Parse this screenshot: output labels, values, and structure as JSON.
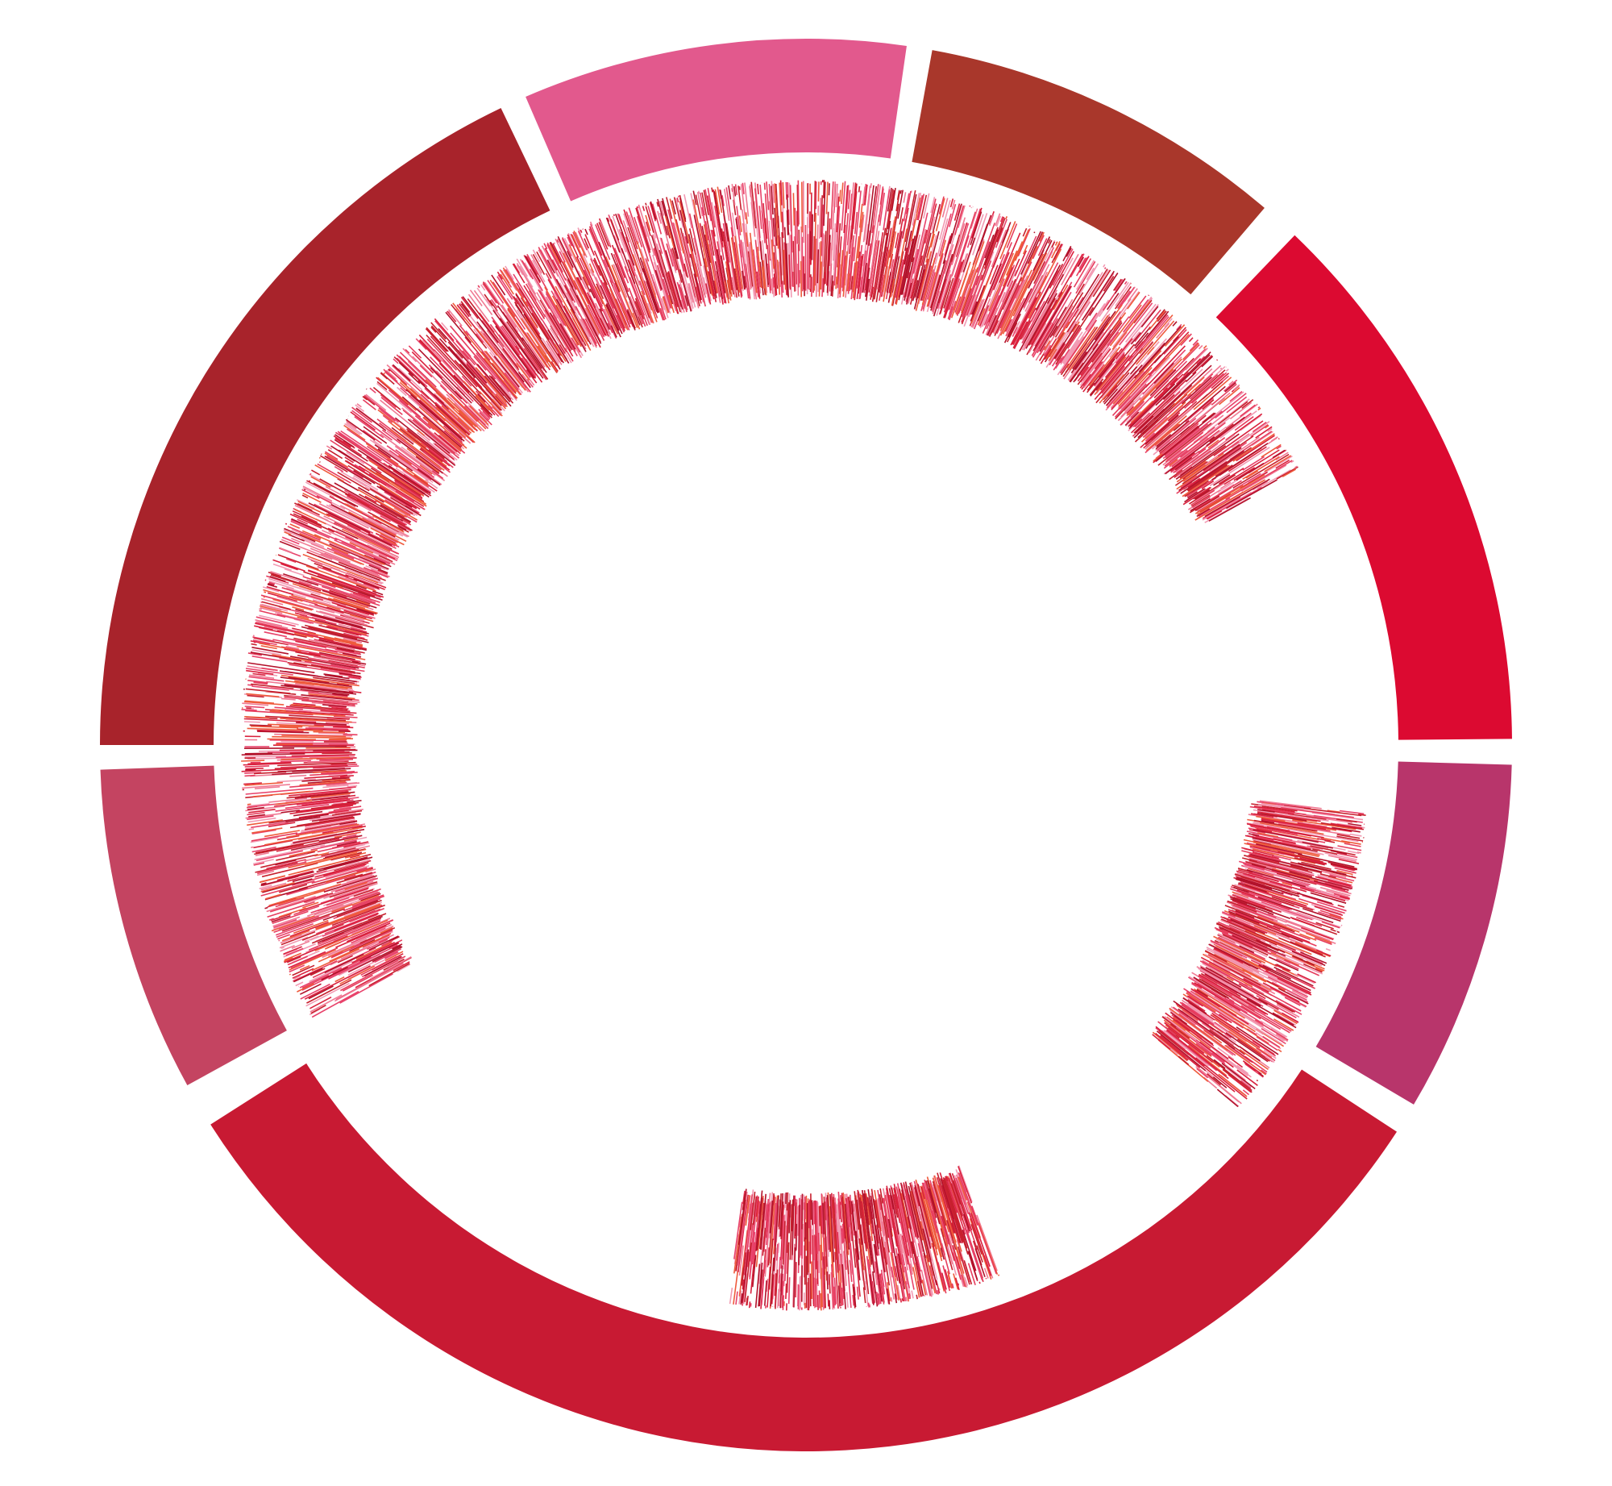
{
  "diagram": {
    "type": "circular-genome-plot",
    "background": "#ffffff",
    "palette": [
      "#a8232b",
      "#e2598d",
      "#a9372b",
      "#dc0a31",
      "#b8356b",
      "#c81a33",
      "#c44461"
    ],
    "stripe_palette": [
      "#d9213d",
      "#e8436b",
      "#f07a94",
      "#c7202e",
      "#ef5a3c",
      "#b3122b",
      "#f29ab3",
      "#e63d5e"
    ],
    "segments": [
      {
        "name": "segment-1",
        "start_deg": 270.0,
        "end_deg": 334.4,
        "color": "#a8232b"
      },
      {
        "name": "segment-2",
        "start_deg": 336.6,
        "end_deg": 8.2,
        "color": "#e2598d"
      },
      {
        "name": "segment-3",
        "start_deg": 10.3,
        "end_deg": 40.5,
        "color": "#a9372b"
      },
      {
        "name": "segment-4",
        "start_deg": 43.8,
        "end_deg": 89.5,
        "color": "#dc0a31"
      },
      {
        "name": "segment-5",
        "start_deg": 91.6,
        "end_deg": 120.6,
        "color": "#b8356b"
      },
      {
        "name": "segment-6",
        "start_deg": 123.2,
        "end_deg": 237.5,
        "color": "#c81a33"
      },
      {
        "name": "segment-7",
        "start_deg": 241.2,
        "end_deg": 268.0,
        "color": "#c44461"
      }
    ],
    "tracks": [
      {
        "name": "track-upper",
        "start_deg": 241.0,
        "end_deg": 61.0,
        "stripes": 1400,
        "seed": 11
      },
      {
        "name": "track-right",
        "start_deg": 97.0,
        "end_deg": 130.0,
        "stripes": 320,
        "seed": 29
      },
      {
        "name": "track-bottom",
        "start_deg": 160.0,
        "end_deg": 188.0,
        "stripes": 300,
        "seed": 47
      }
    ]
  }
}
